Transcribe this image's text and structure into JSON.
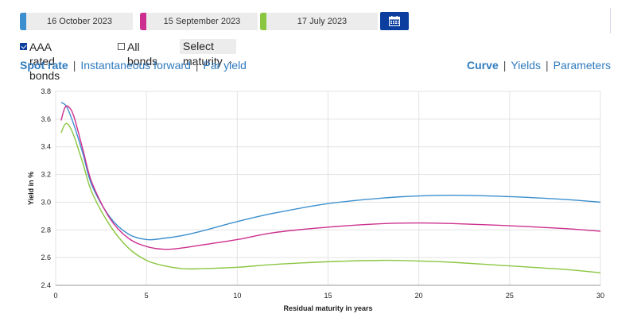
{
  "dates": [
    {
      "label": "16 October 2023",
      "color": "#3b8fce"
    },
    {
      "label": "15 September 2023",
      "color": "#cc2f8f"
    },
    {
      "label": "17 July 2023",
      "color": "#8ac640"
    }
  ],
  "filters": {
    "aaa_label": "AAA rated bonds",
    "aaa_checked": true,
    "all_label": "All bonds",
    "all_checked": false,
    "maturity_select": "Select maturity"
  },
  "left_links": [
    {
      "label": "Spot rate",
      "active": true
    },
    {
      "label": "Instantaneous forward",
      "active": false
    },
    {
      "label": "Par yield",
      "active": false
    }
  ],
  "right_links": [
    {
      "label": "Curve",
      "active": true
    },
    {
      "label": "Yields",
      "active": false
    },
    {
      "label": "Parameters",
      "active": false
    }
  ],
  "icons": {
    "calendar": "calendar-icon",
    "select_caret": "chevron-down-icon"
  },
  "chart_data": {
    "type": "line",
    "xlabel": "Residual maturity in years",
    "ylabel": "Yield in %",
    "xlim": [
      0,
      30
    ],
    "ylim": [
      2.4,
      3.8
    ],
    "xticks": [
      0,
      5,
      10,
      15,
      20,
      25,
      30
    ],
    "yticks": [
      2.4,
      2.6,
      2.8,
      3.0,
      3.2,
      3.4,
      3.6,
      3.8
    ],
    "grid": true,
    "series": [
      {
        "name": "16 October 2023",
        "color": "#3b8fce",
        "x": [
          0.3,
          0.6,
          1,
          1.5,
          2,
          3,
          4,
          5,
          6,
          7,
          8,
          10,
          12,
          15,
          18,
          20,
          22,
          25,
          28,
          30
        ],
        "y": [
          3.72,
          3.69,
          3.56,
          3.35,
          3.12,
          2.89,
          2.77,
          2.73,
          2.74,
          2.76,
          2.79,
          2.86,
          2.92,
          2.99,
          3.03,
          3.045,
          3.05,
          3.04,
          3.02,
          3.0
        ]
      },
      {
        "name": "15 September 2023",
        "color": "#cc2f8f",
        "x": [
          0.3,
          0.5,
          0.7,
          1,
          1.5,
          2,
          3,
          4,
          5,
          6,
          7,
          8,
          10,
          12,
          15,
          18,
          20,
          22,
          25,
          28,
          30
        ],
        "y": [
          3.59,
          3.68,
          3.69,
          3.62,
          3.38,
          3.14,
          2.88,
          2.74,
          2.68,
          2.66,
          2.67,
          2.69,
          2.73,
          2.78,
          2.82,
          2.845,
          2.85,
          2.845,
          2.83,
          2.81,
          2.79
        ]
      },
      {
        "name": "17 July 2023",
        "color": "#8ac640",
        "x": [
          0.3,
          0.5,
          0.7,
          1,
          1.5,
          2,
          3,
          4,
          5,
          6,
          7,
          8,
          10,
          12,
          15,
          18,
          20,
          22,
          25,
          28,
          30
        ],
        "y": [
          3.5,
          3.56,
          3.56,
          3.48,
          3.28,
          3.07,
          2.83,
          2.67,
          2.58,
          2.54,
          2.52,
          2.52,
          2.53,
          2.55,
          2.57,
          2.58,
          2.575,
          2.565,
          2.54,
          2.515,
          2.49
        ]
      }
    ]
  }
}
